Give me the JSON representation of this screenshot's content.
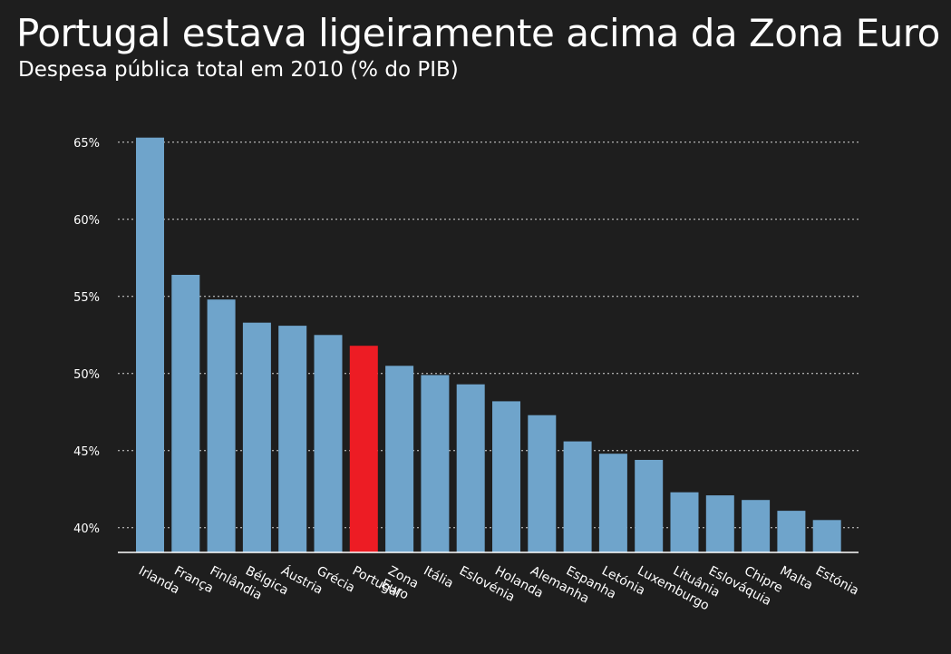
{
  "chart_data": {
    "type": "bar",
    "title": "Portugal estava ligeiramente acima da Zona Euro",
    "subtitle": "Despesa pública total em 2010 (% do PIB)",
    "xlabel": "",
    "ylabel": "",
    "ylim": [
      38.4,
      65.5
    ],
    "yticks": [
      40,
      45,
      50,
      55,
      60,
      65
    ],
    "ytick_labels": [
      "40%",
      "45%",
      "50%",
      "55%",
      "60%",
      "65%"
    ],
    "grid": true,
    "categories": [
      "Irlanda",
      "França",
      "Finlândia",
      "Bélgica",
      "Áustria",
      "Grécia",
      "Portugal",
      "Zona Euro",
      "Itália",
      "Eslovénia",
      "Holanda",
      "Alemanha",
      "Espanha",
      "Letónia",
      "Luxemburgo",
      "Lituânia",
      "Eslováquia",
      "Chipre",
      "Malta",
      "Estónia"
    ],
    "values": [
      65.3,
      56.4,
      54.8,
      53.3,
      53.1,
      52.5,
      51.8,
      50.5,
      49.9,
      49.3,
      48.2,
      47.3,
      45.6,
      44.8,
      44.4,
      42.3,
      42.1,
      41.8,
      41.1,
      40.5
    ],
    "highlight": "Portugal",
    "colors": {
      "bar": "#6fa4cb",
      "highlight": "#ed1c24",
      "background": "#1e1e1e",
      "text": "#ffffff",
      "grid": "#d9d9d9"
    }
  }
}
